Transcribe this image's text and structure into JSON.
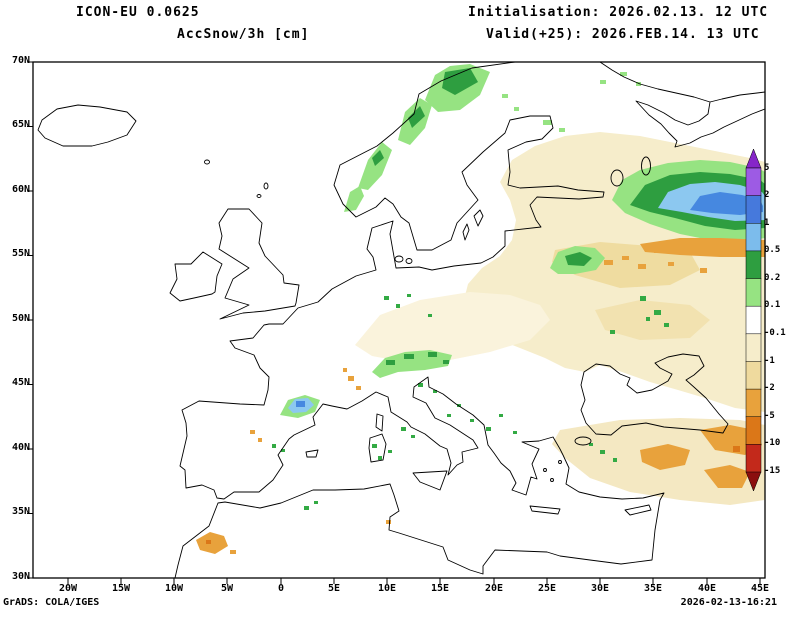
{
  "header": {
    "model": "ICON-EU 0.0625",
    "variable": "AccSnow/3h [cm]",
    "initialisation": "Initialisation: 2026.02.13. 12 UTC",
    "valid": "Valid(+25): 2026.FEB.14. 13 UTC"
  },
  "footer": {
    "credit": "GrADS: COLA/IGES",
    "timestamp": "2026-02-13-16:21"
  },
  "axes": {
    "y_labels": [
      "70N",
      "65N",
      "60N",
      "55N",
      "50N",
      "45N",
      "40N",
      "35N",
      "30N"
    ],
    "x_labels": [
      "20W",
      "15W",
      "10W",
      "5W",
      "0",
      "5E",
      "10E",
      "15E",
      "20E",
      "25E",
      "30E",
      "35E",
      "40E",
      "45E"
    ]
  },
  "colorbar": {
    "labels": [
      "5",
      "2",
      "1",
      "0.5",
      "0.2",
      "0.1",
      "-0.1",
      "-1",
      "-2",
      "-5",
      "-10",
      "-15"
    ],
    "segment_colors": [
      "#9D5BE4",
      "#4679DC",
      "#7CBCEC",
      "#2E9E40",
      "#96E382",
      "#FFFFFF",
      "#F6EDCB",
      "#EFDA9E",
      "#E8A23C",
      "#DB7718",
      "#C3291B"
    ],
    "arrow_up_color": "#8626C8",
    "arrow_down_color": "#8B0E0E"
  },
  "chart_data": {
    "type": "heatmap",
    "title": "AccSnow/3h [cm]",
    "model": "ICON-EU 0.0625",
    "unit": "cm",
    "lon_range_deg": [
      -23.3,
      45.5
    ],
    "lat_range_deg": [
      30,
      70
    ],
    "scale_boundaries": [
      5,
      2,
      1,
      0.5,
      0.2,
      0.1,
      -0.1,
      -1,
      -2,
      -5,
      -10,
      -15
    ],
    "features": [
      {
        "region": "Norwegian coast and mountains",
        "values": "0.1 to 0.5 (green patches)"
      },
      {
        "region": "NW Russia / White Sea area 60-63N 32-45E",
        "values": "0.5 to 5 band (green with light-blue/blue core)"
      },
      {
        "region": "Eastern Europe / western Russia",
        "values": "-0.1 to -2 broad area (cream/tan)"
      },
      {
        "region": "Central Russia band south of blue core",
        "values": "-2 to -5 (orange band and speckles)"
      },
      {
        "region": "Baltics / Belarus",
        "values": "0.1 to 0.5 patch (green)"
      },
      {
        "region": "Alps",
        "values": "0.1 to 0.5 patches, local -2 to -5 spots"
      },
      {
        "region": "Pyrenees / NE Spain",
        "values": "up to 1-2 (light blue and blue core)"
      },
      {
        "region": "Eastern Turkey / Caucasus",
        "values": "-2 to -10, local -10 to -15 (orange to red)"
      },
      {
        "region": "Morocco Atlas",
        "values": "-2 to -5 spots (orange)"
      },
      {
        "region": "Central Europe",
        "values": "-0.1 to -1 pale area with scattered green specks"
      }
    ]
  }
}
